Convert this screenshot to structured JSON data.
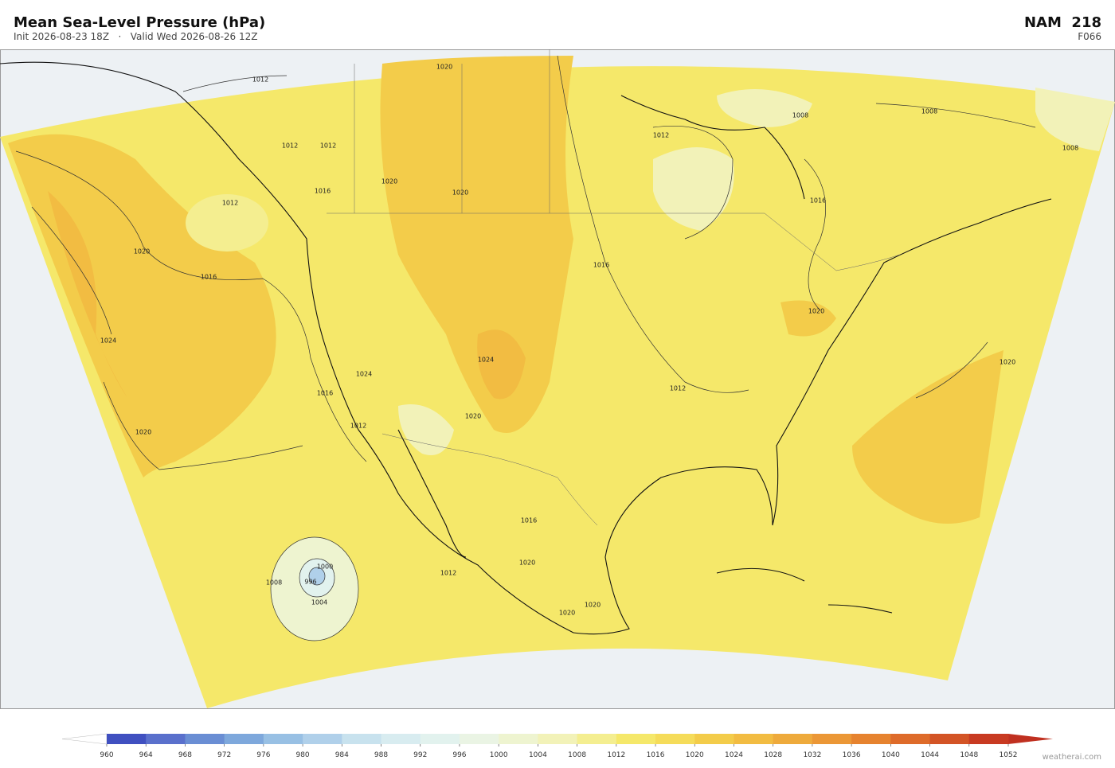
{
  "header": {
    "title": "Mean Sea-Level Pressure  (hPa)",
    "subtitle": "Init 2026-08-23 18Z   ·   Valid Wed 2026-08-26 12Z",
    "model": "NAM  218",
    "forecast_hour": "F066"
  },
  "map": {
    "contour_labels": [
      "1012",
      "1012",
      "1012",
      "1012",
      "1016",
      "1020",
      "1024",
      "1020",
      "1016",
      "1012",
      "1020",
      "1020",
      "1020",
      "1016",
      "1012",
      "1008",
      "1008",
      "1008",
      "1016",
      "1020",
      "1020",
      "1012",
      "1024",
      "1020",
      "1008",
      "1004",
      "1000",
      "996",
      "1012",
      "1020",
      "1016",
      "1020",
      "1020",
      "1024",
      "1016"
    ]
  },
  "colorbar": {
    "ticks": [
      960,
      964,
      968,
      972,
      976,
      980,
      984,
      988,
      992,
      996,
      1000,
      1004,
      1008,
      1012,
      1016,
      1020,
      1024,
      1028,
      1032,
      1036,
      1040,
      1044,
      1048,
      1052
    ],
    "colors": [
      "#4050c0",
      "#5a70cc",
      "#6a8ed4",
      "#7ea8dc",
      "#98c0e4",
      "#b0d0ea",
      "#c8e2ee",
      "#d8ecf0",
      "#e2f2ee",
      "#eaf4e4",
      "#eef4d0",
      "#f2f2b8",
      "#f4ee90",
      "#f5e86a",
      "#f5dc5a",
      "#f3cc4a",
      "#f2bc42",
      "#eeaa3c",
      "#eb9736",
      "#e6832f",
      "#de6b2a",
      "#d35426",
      "#c83a22"
    ],
    "extend_colors": [
      "#ffffff",
      "#c03020"
    ]
  },
  "footer": {
    "credit": "weatherai.com"
  }
}
